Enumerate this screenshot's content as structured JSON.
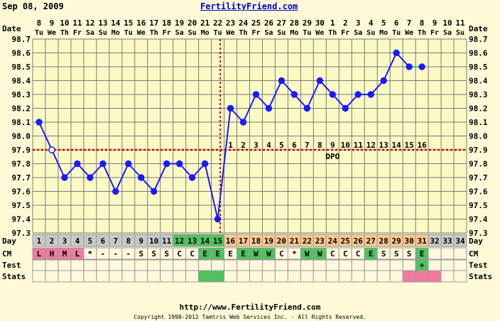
{
  "header": {
    "date": "Sep 08, 2009",
    "site": "FertilityFriend.com"
  },
  "footer": {
    "url": "http://www.FertilityFriend.com",
    "copyright": "Copyright 1998-2012 Tamtris Web Services Inc. - All Rights Reserved."
  },
  "colors": {
    "background": "#fefad8",
    "plot_background": "#fbf9c4",
    "grid": "#7a7a7a",
    "temp_line": "#1a1aff",
    "coverline": "#cc0000",
    "day_gray": "#c8c8c8",
    "day_green": "#4ec35f",
    "day_orange": "#f9c88f",
    "day_white": "#fff8dd",
    "pink": "#f07aa0",
    "green": "#4ec35f"
  },
  "chart_data": {
    "type": "line",
    "title": "",
    "axis_left_label_date": "Date",
    "axis_row_label_day": "Day",
    "ylim": [
      97.3,
      98.7
    ],
    "y_ticks": [
      "97.3",
      "97.4",
      "97.5",
      "97.6",
      "97.7",
      "97.8",
      "97.9",
      "98.0",
      "98.1",
      "98.2",
      "98.3",
      "98.4",
      "98.5",
      "98.6",
      "98.7"
    ],
    "dates": [
      "8",
      "9",
      "10",
      "11",
      "12",
      "13",
      "14",
      "15",
      "16",
      "17",
      "18",
      "19",
      "20",
      "21",
      "22",
      "23",
      "24",
      "25",
      "26",
      "27",
      "28",
      "29",
      "30",
      "1",
      "2",
      "3",
      "4",
      "5",
      "6",
      "7",
      "8",
      "9",
      "10",
      "11"
    ],
    "weekdays": [
      "Tu",
      "We",
      "Th",
      "Fr",
      "Sa",
      "Su",
      "Mo",
      "Tu",
      "We",
      "Th",
      "Fr",
      "Sa",
      "Su",
      "Mo",
      "Tu",
      "We",
      "Th",
      "Fr",
      "Sa",
      "Su",
      "Mo",
      "Tu",
      "We",
      "Th",
      "Fr",
      "Sa",
      "Su",
      "Mo",
      "Tu",
      "We",
      "Th",
      "Fr",
      "Sa",
      "Su"
    ],
    "days": [
      "1",
      "2",
      "3",
      "4",
      "5",
      "6",
      "7",
      "8",
      "9",
      "10",
      "11",
      "12",
      "13",
      "14",
      "15",
      "16",
      "17",
      "18",
      "19",
      "20",
      "21",
      "22",
      "23",
      "24",
      "25",
      "26",
      "27",
      "28",
      "29",
      "30",
      "31",
      "32",
      "33",
      "34"
    ],
    "day_colors": [
      "gray",
      "gray",
      "gray",
      "gray",
      "gray",
      "gray",
      "gray",
      "gray",
      "gray",
      "gray",
      "gray",
      "green",
      "green",
      "green",
      "green",
      "orange",
      "orange",
      "orange",
      "orange",
      "orange",
      "orange",
      "orange",
      "orange",
      "orange",
      "orange",
      "orange",
      "orange",
      "orange",
      "orange",
      "orange",
      "orange",
      "gray",
      "gray",
      "gray"
    ],
    "temps": [
      98.1,
      97.9,
      97.7,
      97.8,
      97.7,
      97.8,
      97.6,
      97.8,
      97.7,
      97.6,
      97.8,
      97.8,
      97.7,
      97.8,
      97.4,
      98.2,
      98.1,
      98.3,
      98.2,
      98.4,
      98.3,
      98.2,
      98.4,
      98.3,
      98.2,
      98.3,
      98.3,
      98.4,
      98.6,
      98.5,
      98.5,
      null,
      null,
      null
    ],
    "open_circle_days": [
      2
    ],
    "coverline": 97.9,
    "ovulation_day": 15,
    "dpo_label": "DPO",
    "dpo_numbers": [
      "1",
      "2",
      "3",
      "4",
      "5",
      "6",
      "7",
      "8",
      "9",
      "10",
      "11",
      "12",
      "13",
      "14",
      "15",
      "16"
    ],
    "dpo_start_day": 16,
    "rows": {
      "cm_label": "CM",
      "cm": [
        "L",
        "H",
        "M",
        "L",
        "*",
        "-",
        "-",
        "-",
        "S",
        "S",
        "S",
        "C",
        "C",
        "E",
        "E",
        "E",
        "E",
        "W",
        "W",
        "C",
        "*",
        "W",
        "W",
        "C",
        "C",
        "C",
        "E",
        "S",
        "S",
        "S",
        "E",
        "",
        "",
        ""
      ],
      "cm_colors": [
        "pink",
        "pink",
        "pink",
        "pink",
        "white",
        "white",
        "white",
        "white",
        "white",
        "white",
        "white",
        "white",
        "white",
        "green",
        "green",
        "white",
        "green",
        "green",
        "green",
        "white",
        "white",
        "green",
        "green",
        "white",
        "white",
        "white",
        "green",
        "white",
        "white",
        "white",
        "green",
        "white",
        "white",
        "white"
      ],
      "test_label": "Test",
      "test": [
        "",
        "",
        "",
        "",
        "",
        "",
        "",
        "",
        "",
        "",
        "",
        "",
        "",
        "",
        "",
        "",
        "",
        "",
        "",
        "",
        "",
        "",
        "",
        "",
        "",
        "",
        "",
        "",
        "",
        "",
        "+",
        "",
        "",
        ""
      ],
      "test_colors": [
        "white",
        "white",
        "white",
        "white",
        "white",
        "white",
        "white",
        "white",
        "white",
        "white",
        "white",
        "white",
        "white",
        "white",
        "white",
        "white",
        "white",
        "white",
        "white",
        "white",
        "white",
        "white",
        "white",
        "white",
        "white",
        "white",
        "white",
        "white",
        "white",
        "white",
        "green",
        "white",
        "white",
        "white"
      ],
      "stats_label": "Stats",
      "stats_colors": [
        "white",
        "white",
        "white",
        "white",
        "white",
        "white",
        "white",
        "white",
        "white",
        "white",
        "white",
        "white",
        "white",
        "green",
        "green",
        "white",
        "white",
        "white",
        "white",
        "white",
        "white",
        "white",
        "white",
        "white",
        "white",
        "white",
        "white",
        "white",
        "white",
        "pink",
        "pink",
        "pink",
        "white",
        "white"
      ]
    }
  }
}
